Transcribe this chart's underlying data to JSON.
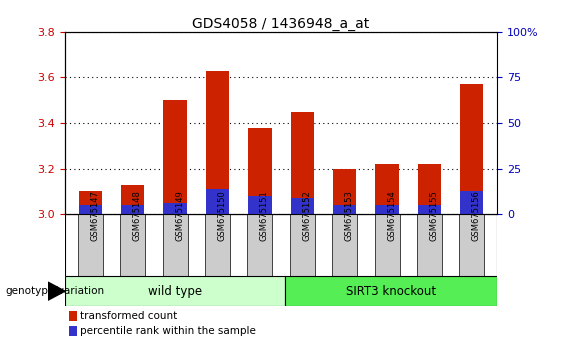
{
  "title": "GDS4058 / 1436948_a_at",
  "samples": [
    "GSM675147",
    "GSM675148",
    "GSM675149",
    "GSM675150",
    "GSM675151",
    "GSM675152",
    "GSM675153",
    "GSM675154",
    "GSM675155",
    "GSM675156"
  ],
  "red_values": [
    3.1,
    3.13,
    3.5,
    3.63,
    3.38,
    3.45,
    3.2,
    3.22,
    3.22,
    3.57
  ],
  "blue_values": [
    3.04,
    3.04,
    3.05,
    3.11,
    3.08,
    3.07,
    3.04,
    3.04,
    3.04,
    3.1
  ],
  "ymin": 3.0,
  "ymax": 3.8,
  "y_ticks": [
    3.0,
    3.2,
    3.4,
    3.6,
    3.8
  ],
  "right_yticks": [
    0,
    25,
    50,
    75,
    100
  ],
  "right_yticklabels": [
    "0",
    "25",
    "50",
    "75",
    "100%"
  ],
  "bar_width": 0.55,
  "red_color": "#CC2200",
  "blue_color": "#3333CC",
  "wild_type_label": "wild type",
  "knockout_label": "SIRT3 knockout",
  "group_bg_wild": "#CCFFCC",
  "group_bg_ko": "#55EE55",
  "xlabel_genotype": "genotype/variation",
  "legend_red": "transformed count",
  "legend_blue": "percentile rank within the sample",
  "grid_color": "black",
  "title_fontsize": 10,
  "axis_tick_color_left": "#CC0000",
  "axis_tick_color_right": "#0000BB",
  "bar_bg_color": "#CCCCCC"
}
